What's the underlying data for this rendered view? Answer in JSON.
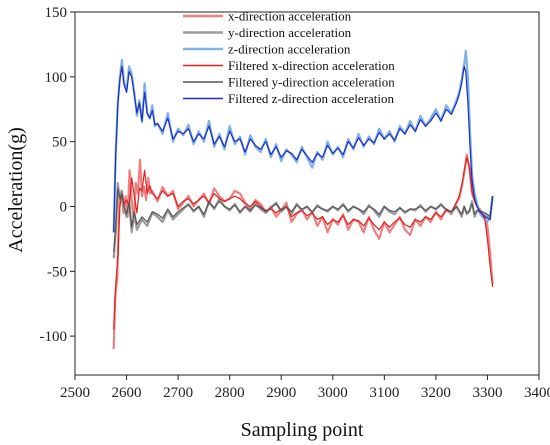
{
  "chart_data": {
    "type": "line",
    "xlabel": "Sampling point",
    "ylabel": "Acceleration(g)",
    "xlim": [
      2500,
      3400
    ],
    "ylim": [
      -130,
      150
    ],
    "x_ticks": [
      2500,
      2600,
      2700,
      2800,
      2900,
      3000,
      3100,
      3200,
      3300,
      3400
    ],
    "y_ticks": [
      -100,
      -50,
      0,
      50,
      100,
      150
    ],
    "grid": false,
    "legend_position": "top-center",
    "series": [
      {
        "name": "x-direction acceleration",
        "color": "#f08080",
        "x": [
          2575,
          2578,
          2582,
          2586,
          2590,
          2594,
          2598,
          2602,
          2606,
          2610,
          2614,
          2618,
          2622,
          2626,
          2630,
          2634,
          2638,
          2642,
          2646,
          2650,
          2660,
          2670,
          2680,
          2690,
          2700,
          2710,
          2720,
          2730,
          2740,
          2750,
          2760,
          2770,
          2780,
          2790,
          2800,
          2810,
          2820,
          2830,
          2840,
          2850,
          2860,
          2870,
          2880,
          2890,
          2900,
          2910,
          2920,
          2930,
          2940,
          2950,
          2960,
          2970,
          2980,
          2990,
          3000,
          3010,
          3020,
          3030,
          3040,
          3050,
          3060,
          3070,
          3080,
          3090,
          3100,
          3110,
          3120,
          3130,
          3140,
          3150,
          3160,
          3170,
          3180,
          3190,
          3200,
          3210,
          3220,
          3230,
          3240,
          3245,
          3250,
          3255,
          3260,
          3265,
          3270,
          3275,
          3280,
          3285,
          3290,
          3295,
          3300,
          3305,
          3310
        ],
        "y": [
          -110,
          -70,
          -55,
          5,
          12,
          -5,
          8,
          -8,
          28,
          5,
          -12,
          18,
          10,
          36,
          8,
          15,
          5,
          22,
          10,
          12,
          4,
          15,
          8,
          12,
          -2,
          3,
          8,
          0,
          5,
          10,
          2,
          14,
          8,
          4,
          6,
          12,
          10,
          3,
          -2,
          5,
          2,
          -5,
          0,
          -8,
          -3,
          3,
          -12,
          -6,
          -2,
          -10,
          -4,
          -15,
          -8,
          -20,
          -10,
          -14,
          -6,
          -18,
          -10,
          -12,
          -20,
          -8,
          -18,
          -25,
          -12,
          -20,
          -14,
          -8,
          -18,
          -22,
          -10,
          -15,
          -8,
          -12,
          -4,
          -10,
          -2,
          -6,
          3,
          6,
          15,
          25,
          40,
          30,
          10,
          5,
          0,
          -2,
          -5,
          -8,
          -15,
          -35,
          -60
        ]
      },
      {
        "name": "y-direction acceleration",
        "color": "#9a9a9a",
        "x": [
          2575,
          2579,
          2583,
          2587,
          2591,
          2595,
          2600,
          2605,
          2610,
          2615,
          2620,
          2630,
          2640,
          2650,
          2660,
          2670,
          2680,
          2690,
          2700,
          2710,
          2720,
          2730,
          2740,
          2750,
          2760,
          2770,
          2780,
          2790,
          2800,
          2810,
          2820,
          2830,
          2840,
          2850,
          2860,
          2870,
          2880,
          2890,
          2900,
          2910,
          2920,
          2930,
          2940,
          2950,
          2960,
          2970,
          2980,
          2990,
          3000,
          3010,
          3020,
          3030,
          3040,
          3050,
          3060,
          3070,
          3080,
          3090,
          3100,
          3110,
          3120,
          3130,
          3140,
          3150,
          3160,
          3170,
          3180,
          3190,
          3200,
          3210,
          3220,
          3230,
          3240,
          3250,
          3255,
          3260,
          3265,
          3270,
          3275,
          3280,
          3290,
          3300,
          3305,
          3310
        ],
        "y": [
          -40,
          -20,
          18,
          5,
          12,
          -2,
          -8,
          5,
          -20,
          -5,
          -18,
          -10,
          -15,
          -5,
          -8,
          -12,
          -3,
          -10,
          -6,
          -2,
          2,
          -4,
          0,
          -8,
          4,
          -2,
          6,
          0,
          -3,
          2,
          -5,
          0,
          -4,
          2,
          -2,
          -5,
          -1,
          3,
          -4,
          0,
          -6,
          2,
          -3,
          0,
          -5,
          1,
          -2,
          -4,
          0,
          -3,
          2,
          -4,
          0,
          -2,
          -6,
          1,
          -3,
          -8,
          0,
          -4,
          -6,
          -1,
          -5,
          -2,
          -3,
          1,
          -4,
          0,
          -2,
          2,
          -3,
          -5,
          0,
          -8,
          0,
          -6,
          -4,
          4,
          -8,
          -3,
          -5,
          -8,
          -10,
          8
        ]
      },
      {
        "name": "z-direction acceleration",
        "color": "#7fb2e5",
        "x": [
          2575,
          2579,
          2583,
          2587,
          2591,
          2595,
          2600,
          2605,
          2610,
          2615,
          2620,
          2625,
          2630,
          2635,
          2640,
          2645,
          2650,
          2655,
          2660,
          2670,
          2680,
          2690,
          2700,
          2710,
          2720,
          2730,
          2740,
          2750,
          2760,
          2770,
          2780,
          2790,
          2800,
          2810,
          2820,
          2830,
          2840,
          2850,
          2860,
          2870,
          2880,
          2890,
          2900,
          2910,
          2920,
          2930,
          2940,
          2950,
          2960,
          2970,
          2980,
          2990,
          3000,
          3010,
          3020,
          3030,
          3040,
          3050,
          3060,
          3070,
          3080,
          3090,
          3100,
          3110,
          3120,
          3130,
          3140,
          3150,
          3160,
          3170,
          3180,
          3190,
          3200,
          3210,
          3220,
          3230,
          3240,
          3245,
          3250,
          3255,
          3258,
          3262,
          3266,
          3270,
          3275,
          3280,
          3285,
          3290,
          3295,
          3300,
          3305,
          3310
        ],
        "y": [
          -20,
          40,
          80,
          100,
          113,
          96,
          90,
          108,
          102,
          88,
          70,
          82,
          65,
          95,
          72,
          68,
          78,
          62,
          64,
          56,
          72,
          50,
          60,
          55,
          63,
          48,
          58,
          50,
          66,
          46,
          56,
          44,
          62,
          48,
          54,
          40,
          55,
          46,
          42,
          52,
          38,
          48,
          35,
          44,
          40,
          34,
          46,
          38,
          30,
          42,
          36,
          50,
          40,
          46,
          38,
          52,
          44,
          56,
          46,
          54,
          48,
          60,
          52,
          58,
          50,
          62,
          56,
          66,
          58,
          70,
          62,
          68,
          75,
          66,
          78,
          72,
          82,
          88,
          98,
          110,
          120,
          100,
          60,
          25,
          10,
          2,
          -5,
          -8,
          -10,
          -12,
          -8,
          8
        ]
      },
      {
        "name": "Filtered x-direction acceleration",
        "color": "#e0201e",
        "x": [
          2575,
          2579,
          2583,
          2587,
          2591,
          2595,
          2600,
          2605,
          2610,
          2615,
          2620,
          2625,
          2630,
          2635,
          2640,
          2645,
          2650,
          2660,
          2670,
          2680,
          2690,
          2700,
          2710,
          2720,
          2730,
          2740,
          2750,
          2760,
          2770,
          2780,
          2790,
          2800,
          2810,
          2820,
          2830,
          2840,
          2850,
          2860,
          2870,
          2880,
          2890,
          2900,
          2910,
          2920,
          2930,
          2940,
          2950,
          2960,
          2970,
          2980,
          2990,
          3000,
          3010,
          3020,
          3030,
          3040,
          3050,
          3060,
          3070,
          3080,
          3090,
          3100,
          3110,
          3120,
          3130,
          3140,
          3150,
          3160,
          3170,
          3180,
          3190,
          3200,
          3210,
          3220,
          3230,
          3240,
          3245,
          3250,
          3255,
          3260,
          3265,
          3270,
          3275,
          3280,
          3285,
          3290,
          3295,
          3300,
          3305,
          3310
        ],
        "y": [
          -95,
          -60,
          -40,
          0,
          10,
          2,
          5,
          0,
          22,
          8,
          -5,
          14,
          12,
          28,
          10,
          16,
          10,
          6,
          12,
          8,
          10,
          0,
          4,
          6,
          2,
          5,
          8,
          3,
          10,
          6,
          4,
          6,
          8,
          6,
          2,
          0,
          4,
          0,
          -3,
          -2,
          -5,
          -2,
          0,
          -8,
          -5,
          -3,
          -7,
          -5,
          -10,
          -8,
          -14,
          -10,
          -12,
          -7,
          -14,
          -10,
          -11,
          -15,
          -9,
          -14,
          -18,
          -12,
          -16,
          -12,
          -9,
          -14,
          -16,
          -10,
          -12,
          -8,
          -10,
          -5,
          -8,
          -3,
          -4,
          3,
          8,
          16,
          28,
          38,
          30,
          12,
          4,
          0,
          -3,
          -6,
          -10,
          -25,
          -45,
          -62
        ]
      },
      {
        "name": "Filtered y-direction acceleration",
        "color": "#555555",
        "x": [
          2575,
          2579,
          2583,
          2587,
          2591,
          2595,
          2600,
          2605,
          2610,
          2615,
          2620,
          2630,
          2640,
          2650,
          2660,
          2670,
          2680,
          2690,
          2700,
          2710,
          2720,
          2730,
          2740,
          2750,
          2760,
          2770,
          2780,
          2790,
          2800,
          2810,
          2820,
          2830,
          2840,
          2850,
          2860,
          2870,
          2880,
          2890,
          2900,
          2910,
          2920,
          2930,
          2940,
          2950,
          2960,
          2970,
          2980,
          2990,
          3000,
          3010,
          3020,
          3030,
          3040,
          3050,
          3060,
          3070,
          3080,
          3090,
          3100,
          3110,
          3120,
          3130,
          3140,
          3150,
          3160,
          3170,
          3180,
          3190,
          3200,
          3210,
          3220,
          3230,
          3240,
          3250,
          3255,
          3260,
          3265,
          3270,
          3275,
          3280,
          3290,
          3300,
          3305,
          3310
        ],
        "y": [
          -35,
          -15,
          14,
          6,
          10,
          0,
          -6,
          3,
          -16,
          -4,
          -14,
          -8,
          -12,
          -4,
          -6,
          -9,
          -2,
          -8,
          -4,
          -1,
          1,
          -3,
          0,
          -6,
          3,
          -1,
          4,
          0,
          -2,
          1,
          -4,
          0,
          -3,
          1,
          -1,
          -4,
          -1,
          2,
          -3,
          0,
          -4,
          1,
          -2,
          0,
          -4,
          0,
          -2,
          -3,
          0,
          -2,
          1,
          -3,
          0,
          -2,
          -4,
          0,
          -2,
          -6,
          0,
          -3,
          -4,
          -1,
          -4,
          -2,
          -2,
          0,
          -3,
          0,
          -2,
          1,
          -2,
          -4,
          0,
          -6,
          0,
          -5,
          -3,
          2,
          -6,
          -3,
          -4,
          -6,
          -8,
          6
        ]
      },
      {
        "name": "Filtered z-direction acceleration",
        "color": "#1c2bc4",
        "x": [
          2575,
          2579,
          2583,
          2587,
          2591,
          2595,
          2600,
          2605,
          2610,
          2615,
          2620,
          2625,
          2630,
          2635,
          2640,
          2645,
          2650,
          2655,
          2660,
          2670,
          2680,
          2690,
          2700,
          2710,
          2720,
          2730,
          2740,
          2750,
          2760,
          2770,
          2780,
          2790,
          2800,
          2810,
          2820,
          2830,
          2840,
          2850,
          2860,
          2870,
          2880,
          2890,
          2900,
          2910,
          2920,
          2930,
          2940,
          2950,
          2960,
          2970,
          2980,
          2990,
          3000,
          3010,
          3020,
          3030,
          3040,
          3050,
          3060,
          3070,
          3080,
          3090,
          3100,
          3110,
          3120,
          3130,
          3140,
          3150,
          3160,
          3170,
          3180,
          3190,
          3200,
          3210,
          3220,
          3230,
          3240,
          3245,
          3250,
          3255,
          3258,
          3262,
          3266,
          3270,
          3275,
          3280,
          3285,
          3290,
          3295,
          3300,
          3305,
          3310
        ],
        "y": [
          -20,
          40,
          78,
          98,
          108,
          94,
          88,
          104,
          100,
          86,
          72,
          80,
          66,
          88,
          72,
          68,
          74,
          63,
          64,
          58,
          68,
          52,
          58,
          56,
          60,
          50,
          56,
          52,
          62,
          48,
          54,
          46,
          58,
          50,
          52,
          42,
          52,
          47,
          44,
          50,
          40,
          46,
          38,
          43,
          41,
          36,
          44,
          39,
          34,
          41,
          38,
          47,
          41,
          45,
          40,
          50,
          45,
          53,
          47,
          52,
          49,
          57,
          52,
          56,
          51,
          60,
          56,
          63,
          58,
          67,
          62,
          66,
          72,
          66,
          75,
          71,
          80,
          86,
          95,
          108,
          104,
          80,
          48,
          20,
          6,
          0,
          -4,
          -6,
          -8,
          -9,
          -10,
          8
        ]
      }
    ]
  }
}
